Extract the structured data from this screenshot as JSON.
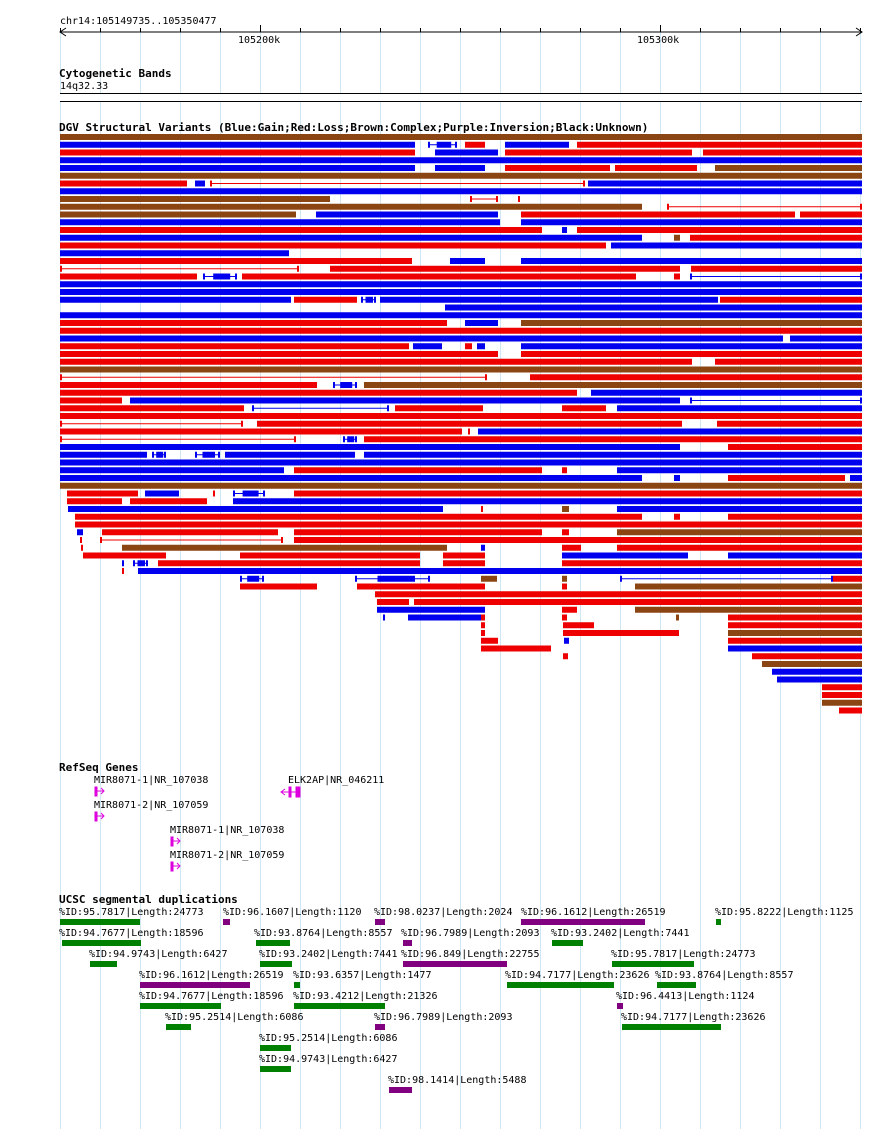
{
  "ruler": {
    "location": "chr14:105149735..105350477",
    "ticks": [
      "105200k",
      "105300k"
    ]
  },
  "cytobands": {
    "title": "Cytogenetic Bands",
    "band": "14q32.33"
  },
  "dgv": {
    "title": "DGV Structural Variants (Blue:Gain;Red:Loss;Brown:Complex;Purple:Inversion;Black:Unknown)",
    "legend_colors": {
      "gain": "#0000ee",
      "loss": "#ee0000",
      "complex": "#8b4513",
      "inversion": "#800080",
      "unknown": "#000000"
    }
  },
  "refseq": {
    "title": "RefSeq Genes",
    "genes": [
      "MIR8071-1|NR_107038",
      "MIR8071-2|NR_107059",
      "MIR8071-1|NR_107038",
      "MIR8071-2|NR_107059",
      "ELK2AP|NR_046211"
    ],
    "color": "#dd00dd"
  },
  "segdups": {
    "title": "UCSC segmental duplications",
    "items": [
      "%ID:95.7817|Length:24773",
      "%ID:96.1607|Length:1120",
      "%ID:98.0237|Length:2024",
      "%ID:96.1612|Length:26519",
      "%ID:95.8222|Length:1125",
      "%ID:94.7677|Length:18596",
      "%ID:93.8764|Length:8557",
      "%ID:96.7989|Length:2093",
      "%ID:93.2402|Length:7441",
      "%ID:94.9743|Length:6427",
      "%ID:93.2402|Length:7441",
      "%ID:96.849|Length:22755",
      "%ID:95.7817|Length:24773",
      "%ID:96.1612|Length:26519",
      "%ID:93.6357|Length:1477",
      "%ID:94.7177|Length:23626",
      "%ID:93.8764|Length:8557",
      "%ID:94.7677|Length:18596",
      "%ID:93.4212|Length:21326",
      "%ID:96.4413|Length:1124",
      "%ID:95.2514|Length:6086",
      "%ID:96.7989|Length:2093",
      "%ID:94.7177|Length:23626",
      "%ID:95.2514|Length:6086",
      "%ID:94.9743|Length:6427",
      "%ID:98.1414|Length:5488"
    ],
    "colors": {
      "green": "#008000",
      "purple": "#800080"
    }
  }
}
